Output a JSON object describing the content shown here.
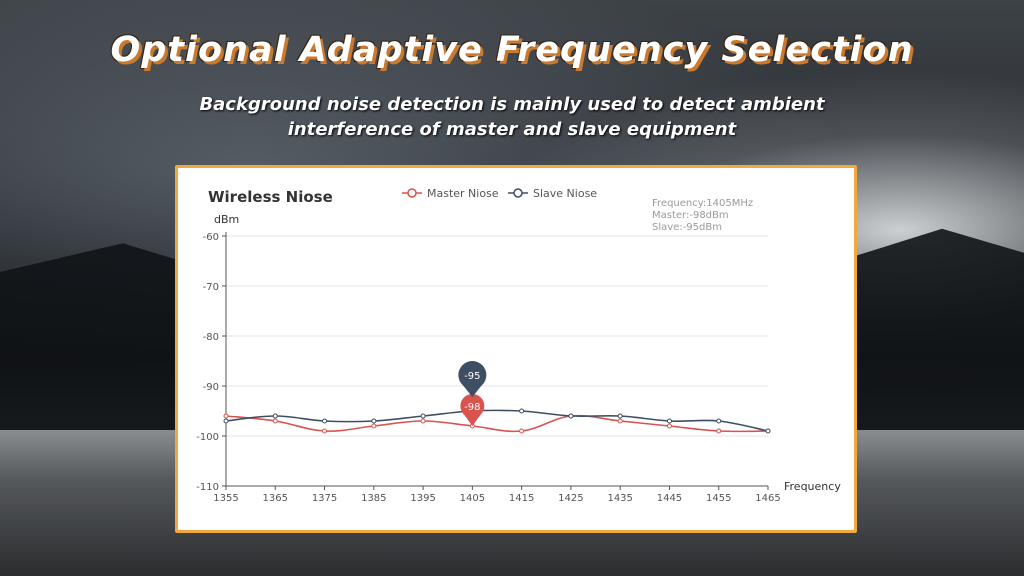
{
  "header": {
    "title": "Optional Adaptive Frequency Selection",
    "subtitle_line1": "Background noise detection is mainly used to detect ambient",
    "subtitle_line2": "interference of master and slave equipment"
  },
  "colors": {
    "master": "#d9534f",
    "slave": "#3e4f63",
    "border": "#f2a93b",
    "grid": "#e4e4e4",
    "axis": "#555555"
  },
  "chart_data": {
    "type": "line",
    "title": "Wireless Niose",
    "ylabel": "dBm",
    "xlabel": "Frequency",
    "x": [
      1355,
      1365,
      1375,
      1385,
      1395,
      1405,
      1415,
      1425,
      1435,
      1445,
      1455,
      1465
    ],
    "xticks": [
      "1355",
      "1365",
      "1375",
      "1385",
      "1395",
      "1405",
      "1415",
      "1425",
      "1435",
      "1445",
      "1455",
      "1465"
    ],
    "yticks": [
      "-60",
      "-70",
      "-80",
      "-90",
      "-100",
      "-110"
    ],
    "ylim": [
      -110,
      -60
    ],
    "xlim": [
      1355,
      1465
    ],
    "grid": true,
    "legend_position": "top-center",
    "series": [
      {
        "name": "Master Niose",
        "values": [
          -96,
          -97,
          -99,
          -98,
          -97,
          -98,
          -99,
          -96,
          -97,
          -98,
          -99,
          -99
        ]
      },
      {
        "name": "Slave Niose",
        "values": [
          -97,
          -96,
          -97,
          -97,
          -96,
          -95,
          -95,
          -96,
          -96,
          -97,
          -97,
          -99
        ]
      }
    ],
    "tooltip": {
      "line1": "Frequency:1405MHz",
      "line2": "Master:-98dBm",
      "line3": "Slave:-95dBm"
    },
    "highlight": {
      "x": 1405,
      "slave_label": "-95",
      "master_label": "-98"
    }
  }
}
